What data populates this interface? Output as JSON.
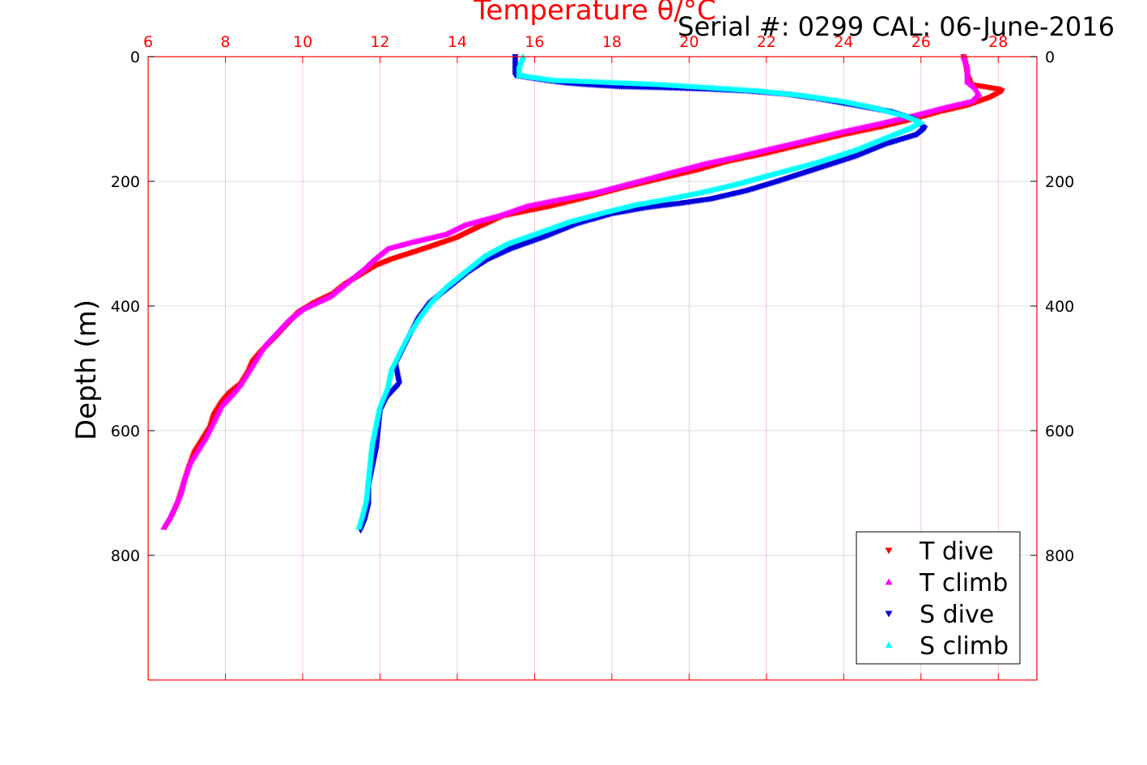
{
  "serial_text": "Serial #: 0299 CAL: 06-June-2016",
  "chart_data": {
    "type": "scatter",
    "title": "",
    "xlabel": "Temperature θ/°C",
    "ylabel": "Depth (m)",
    "xlim": [
      6,
      29
    ],
    "ylim": [
      0,
      1000
    ],
    "y_reversed": true,
    "x_axis_position": "top",
    "x_ticks": [
      6,
      8,
      10,
      12,
      14,
      16,
      18,
      20,
      22,
      24,
      26,
      28
    ],
    "y_ticks": [
      0,
      200,
      400,
      600,
      800
    ],
    "x_tick_labels": [
      "6",
      "8",
      "10",
      "12",
      "14",
      "16",
      "18",
      "20",
      "22",
      "24",
      "26",
      "28"
    ],
    "y_tick_labels": [
      "0",
      "200",
      "400",
      "600",
      "800"
    ],
    "grid": true,
    "legend_position": "bottom-right",
    "axis_color": "#ff0000",
    "series": [
      {
        "name": "T dive",
        "color": "#ff0000",
        "marker": "triangle-down",
        "points": [
          [
            27.1,
            0
          ],
          [
            27.15,
            10
          ],
          [
            27.2,
            30
          ],
          [
            27.3,
            45
          ],
          [
            28.0,
            52
          ],
          [
            28.1,
            55
          ],
          [
            27.8,
            65
          ],
          [
            27.2,
            78
          ],
          [
            26.5,
            88
          ],
          [
            25.8,
            100
          ],
          [
            25.0,
            112
          ],
          [
            24.0,
            125
          ],
          [
            23.0,
            140
          ],
          [
            22.0,
            155
          ],
          [
            21.0,
            168
          ],
          [
            20.2,
            182
          ],
          [
            19.3,
            195
          ],
          [
            18.3,
            210
          ],
          [
            17.4,
            225
          ],
          [
            16.4,
            240
          ],
          [
            15.2,
            255
          ],
          [
            14.5,
            275
          ],
          [
            14.0,
            290
          ],
          [
            13.3,
            305
          ],
          [
            12.8,
            315
          ],
          [
            12.3,
            325
          ],
          [
            11.9,
            335
          ],
          [
            11.5,
            350
          ],
          [
            11.1,
            365
          ],
          [
            10.8,
            380
          ],
          [
            10.3,
            395
          ],
          [
            9.9,
            410
          ],
          [
            9.6,
            430
          ],
          [
            9.3,
            450
          ],
          [
            8.9,
            475
          ],
          [
            8.7,
            490
          ],
          [
            8.6,
            505
          ],
          [
            8.4,
            525
          ],
          [
            8.1,
            540
          ],
          [
            7.9,
            555
          ],
          [
            7.7,
            575
          ],
          [
            7.6,
            595
          ],
          [
            7.4,
            615
          ],
          [
            7.2,
            635
          ],
          [
            7.05,
            660
          ],
          [
            6.95,
            680
          ],
          [
            6.85,
            700
          ],
          [
            6.75,
            720
          ],
          [
            6.6,
            740
          ],
          [
            6.45,
            755
          ]
        ]
      },
      {
        "name": "T climb",
        "color": "#ff00ff",
        "marker": "triangle-up",
        "points": [
          [
            27.1,
            0
          ],
          [
            27.2,
            15
          ],
          [
            27.2,
            40
          ],
          [
            27.4,
            50
          ],
          [
            27.5,
            60
          ],
          [
            27.3,
            72
          ],
          [
            26.6,
            82
          ],
          [
            25.8,
            95
          ],
          [
            24.9,
            108
          ],
          [
            24.0,
            120
          ],
          [
            23.0,
            135
          ],
          [
            22.1,
            148
          ],
          [
            21.3,
            160
          ],
          [
            20.4,
            172
          ],
          [
            19.6,
            185
          ],
          [
            18.7,
            200
          ],
          [
            17.6,
            218
          ],
          [
            16.6,
            230
          ],
          [
            15.8,
            240
          ],
          [
            15.1,
            255
          ],
          [
            14.2,
            270
          ],
          [
            13.7,
            285
          ],
          [
            12.8,
            298
          ],
          [
            12.2,
            308
          ],
          [
            11.8,
            328
          ],
          [
            11.6,
            340
          ],
          [
            11.2,
            360
          ],
          [
            10.7,
            385
          ],
          [
            10.0,
            405
          ],
          [
            9.6,
            425
          ],
          [
            9.3,
            445
          ],
          [
            9.0,
            465
          ],
          [
            8.8,
            485
          ],
          [
            8.6,
            505
          ],
          [
            8.4,
            525
          ],
          [
            8.2,
            540
          ],
          [
            7.9,
            560
          ],
          [
            7.7,
            585
          ],
          [
            7.5,
            610
          ],
          [
            7.3,
            630
          ],
          [
            7.1,
            650
          ],
          [
            6.95,
            675
          ],
          [
            6.85,
            700
          ],
          [
            6.7,
            720
          ],
          [
            6.55,
            740
          ],
          [
            6.4,
            755
          ]
        ]
      },
      {
        "name": "S dive",
        "color": "#0000dd",
        "marker": "triangle-down",
        "points": [
          [
            15.5,
            0
          ],
          [
            15.5,
            15
          ],
          [
            15.5,
            30
          ],
          [
            16.3,
            38
          ],
          [
            16.8,
            42
          ],
          [
            17.4,
            45
          ],
          [
            18.2,
            48
          ],
          [
            19.5,
            50
          ],
          [
            20.5,
            52
          ],
          [
            21.5,
            55
          ],
          [
            22.5,
            60
          ],
          [
            23.3,
            67
          ],
          [
            24.3,
            78
          ],
          [
            25.2,
            88
          ],
          [
            25.8,
            100
          ],
          [
            26.1,
            115
          ],
          [
            25.9,
            125
          ],
          [
            25.1,
            140
          ],
          [
            24.3,
            160
          ],
          [
            23.3,
            180
          ],
          [
            22.3,
            200
          ],
          [
            21.5,
            215
          ],
          [
            20.6,
            228
          ],
          [
            19.8,
            235
          ],
          [
            18.9,
            242
          ],
          [
            18.0,
            252
          ],
          [
            17.1,
            268
          ],
          [
            16.3,
            288
          ],
          [
            15.4,
            308
          ],
          [
            14.8,
            325
          ],
          [
            14.3,
            345
          ],
          [
            13.8,
            370
          ],
          [
            13.3,
            395
          ],
          [
            13.0,
            420
          ],
          [
            12.8,
            445
          ],
          [
            12.6,
            470
          ],
          [
            12.4,
            495
          ],
          [
            12.5,
            525
          ],
          [
            12.2,
            545
          ],
          [
            12.0,
            570
          ],
          [
            11.95,
            600
          ],
          [
            11.9,
            630
          ],
          [
            11.8,
            660
          ],
          [
            11.7,
            690
          ],
          [
            11.7,
            720
          ],
          [
            11.6,
            745
          ],
          [
            11.5,
            760
          ]
        ]
      },
      {
        "name": "S climb",
        "color": "#00ffff",
        "marker": "triangle-up",
        "points": [
          [
            15.7,
            0
          ],
          [
            15.6,
            15
          ],
          [
            15.6,
            30
          ],
          [
            16.5,
            38
          ],
          [
            17.4,
            40
          ],
          [
            18.2,
            42
          ],
          [
            19.3,
            45
          ],
          [
            20.6,
            50
          ],
          [
            21.8,
            55
          ],
          [
            22.9,
            62
          ],
          [
            24.0,
            72
          ],
          [
            24.8,
            82
          ],
          [
            25.6,
            95
          ],
          [
            26.0,
            105
          ],
          [
            25.7,
            115
          ],
          [
            25.1,
            130
          ],
          [
            24.3,
            150
          ],
          [
            23.3,
            170
          ],
          [
            22.2,
            188
          ],
          [
            21.2,
            205
          ],
          [
            20.3,
            218
          ],
          [
            19.5,
            228
          ],
          [
            18.6,
            238
          ],
          [
            17.8,
            250
          ],
          [
            16.9,
            265
          ],
          [
            16.0,
            285
          ],
          [
            15.3,
            300
          ],
          [
            14.7,
            320
          ],
          [
            14.2,
            345
          ],
          [
            13.7,
            370
          ],
          [
            13.3,
            395
          ],
          [
            13.0,
            420
          ],
          [
            12.7,
            450
          ],
          [
            12.5,
            475
          ],
          [
            12.3,
            500
          ],
          [
            12.2,
            530
          ],
          [
            12.0,
            560
          ],
          [
            11.9,
            590
          ],
          [
            11.8,
            620
          ],
          [
            11.75,
            650
          ],
          [
            11.7,
            680
          ],
          [
            11.65,
            710
          ],
          [
            11.55,
            735
          ],
          [
            11.45,
            755
          ]
        ]
      }
    ]
  }
}
